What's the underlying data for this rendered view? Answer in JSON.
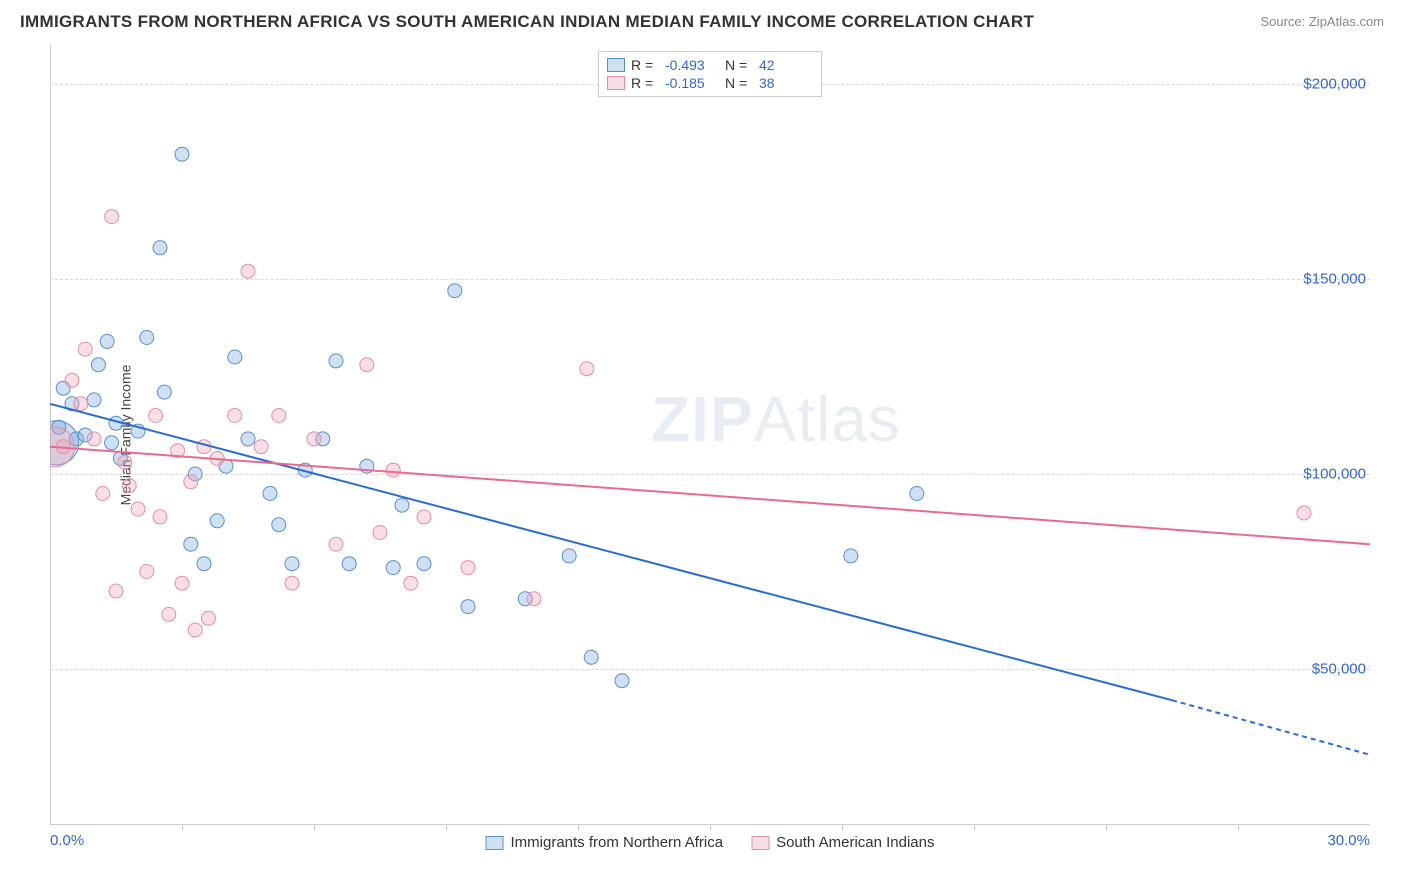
{
  "title": "IMMIGRANTS FROM NORTHERN AFRICA VS SOUTH AMERICAN INDIAN MEDIAN FAMILY INCOME CORRELATION CHART",
  "source": "Source: ZipAtlas.com",
  "ylabel": "Median Family Income",
  "watermark_zip": "ZIP",
  "watermark_atlas": "Atlas",
  "chart": {
    "type": "scatter",
    "xlim": [
      0,
      30
    ],
    "ylim": [
      10000,
      210000
    ],
    "ytick_values": [
      50000,
      100000,
      150000,
      200000
    ],
    "ytick_labels": [
      "$50,000",
      "$100,000",
      "$150,000",
      "$200,000"
    ],
    "xtick_values": [
      0,
      30
    ],
    "xtick_labels": [
      "0.0%",
      "30.0%"
    ],
    "minor_xtick_values": [
      3,
      6,
      9,
      12,
      15,
      18,
      21,
      24,
      27
    ],
    "background_color": "#ffffff",
    "grid_color": "#d8d8d8",
    "marker_radius": 7,
    "marker_stroke_width": 1,
    "trend_line_width": 2
  },
  "series": [
    {
      "id": "blue",
      "label": "Immigrants from Northern Africa",
      "fill": "rgba(120,165,220,0.35)",
      "stroke": "#5b8fd0",
      "line_color": "#2b6cd1",
      "r_label": "R =",
      "r_value": "-0.493",
      "n_label": "N =",
      "n_value": "42",
      "trend": {
        "x1": 0,
        "y1": 118000,
        "x2": 25.5,
        "y2": 42000,
        "dash_from_x": 25.5,
        "dash_to_x": 30,
        "dash_to_y": 28000
      },
      "points": [
        [
          0.2,
          112000
        ],
        [
          0.3,
          122000
        ],
        [
          0.5,
          118000
        ],
        [
          0.6,
          109000
        ],
        [
          0.8,
          110000
        ],
        [
          1.0,
          119000
        ],
        [
          1.1,
          128000
        ],
        [
          1.3,
          134000
        ],
        [
          1.4,
          108000
        ],
        [
          1.5,
          113000
        ],
        [
          1.6,
          104000
        ],
        [
          2.0,
          111000
        ],
        [
          2.2,
          135000
        ],
        [
          2.5,
          158000
        ],
        [
          2.6,
          121000
        ],
        [
          3.0,
          182000
        ],
        [
          3.2,
          82000
        ],
        [
          3.3,
          100000
        ],
        [
          3.5,
          77000
        ],
        [
          3.8,
          88000
        ],
        [
          4.0,
          102000
        ],
        [
          4.2,
          130000
        ],
        [
          4.5,
          109000
        ],
        [
          5.0,
          95000
        ],
        [
          5.2,
          87000
        ],
        [
          5.5,
          77000
        ],
        [
          5.8,
          101000
        ],
        [
          6.2,
          109000
        ],
        [
          6.5,
          129000
        ],
        [
          6.8,
          77000
        ],
        [
          7.2,
          102000
        ],
        [
          7.8,
          76000
        ],
        [
          8.0,
          92000
        ],
        [
          8.5,
          77000
        ],
        [
          9.2,
          147000
        ],
        [
          9.5,
          66000
        ],
        [
          10.8,
          68000
        ],
        [
          11.8,
          79000
        ],
        [
          12.3,
          53000
        ],
        [
          13.0,
          47000
        ],
        [
          18.2,
          79000
        ],
        [
          19.7,
          95000
        ]
      ],
      "big_point": [
        0.15,
        108000,
        22
      ]
    },
    {
      "id": "pink",
      "label": "South American Indians",
      "fill": "rgba(240,160,180,0.35)",
      "stroke": "#e08fa8",
      "line_color": "#e86b8f",
      "r_label": "R =",
      "r_value": "-0.185",
      "n_label": "N =",
      "n_value": "38",
      "trend": {
        "x1": 0,
        "y1": 107000,
        "x2": 30,
        "y2": 82000
      },
      "points": [
        [
          0.3,
          107000
        ],
        [
          0.5,
          124000
        ],
        [
          0.7,
          118000
        ],
        [
          0.8,
          132000
        ],
        [
          1.0,
          109000
        ],
        [
          1.2,
          95000
        ],
        [
          1.4,
          166000
        ],
        [
          1.5,
          70000
        ],
        [
          1.7,
          103000
        ],
        [
          1.8,
          97000
        ],
        [
          2.0,
          91000
        ],
        [
          2.2,
          75000
        ],
        [
          2.4,
          115000
        ],
        [
          2.5,
          89000
        ],
        [
          2.7,
          64000
        ],
        [
          2.9,
          106000
        ],
        [
          3.0,
          72000
        ],
        [
          3.2,
          98000
        ],
        [
          3.3,
          60000
        ],
        [
          3.5,
          107000
        ],
        [
          3.6,
          63000
        ],
        [
          3.8,
          104000
        ],
        [
          4.2,
          115000
        ],
        [
          4.5,
          152000
        ],
        [
          4.8,
          107000
        ],
        [
          5.2,
          115000
        ],
        [
          5.5,
          72000
        ],
        [
          6.0,
          109000
        ],
        [
          6.5,
          82000
        ],
        [
          7.2,
          128000
        ],
        [
          7.5,
          85000
        ],
        [
          7.8,
          101000
        ],
        [
          8.2,
          72000
        ],
        [
          8.5,
          89000
        ],
        [
          9.5,
          76000
        ],
        [
          11.0,
          68000
        ],
        [
          12.2,
          127000
        ],
        [
          28.5,
          90000
        ]
      ],
      "big_point": [
        0.1,
        107000,
        20
      ]
    }
  ]
}
